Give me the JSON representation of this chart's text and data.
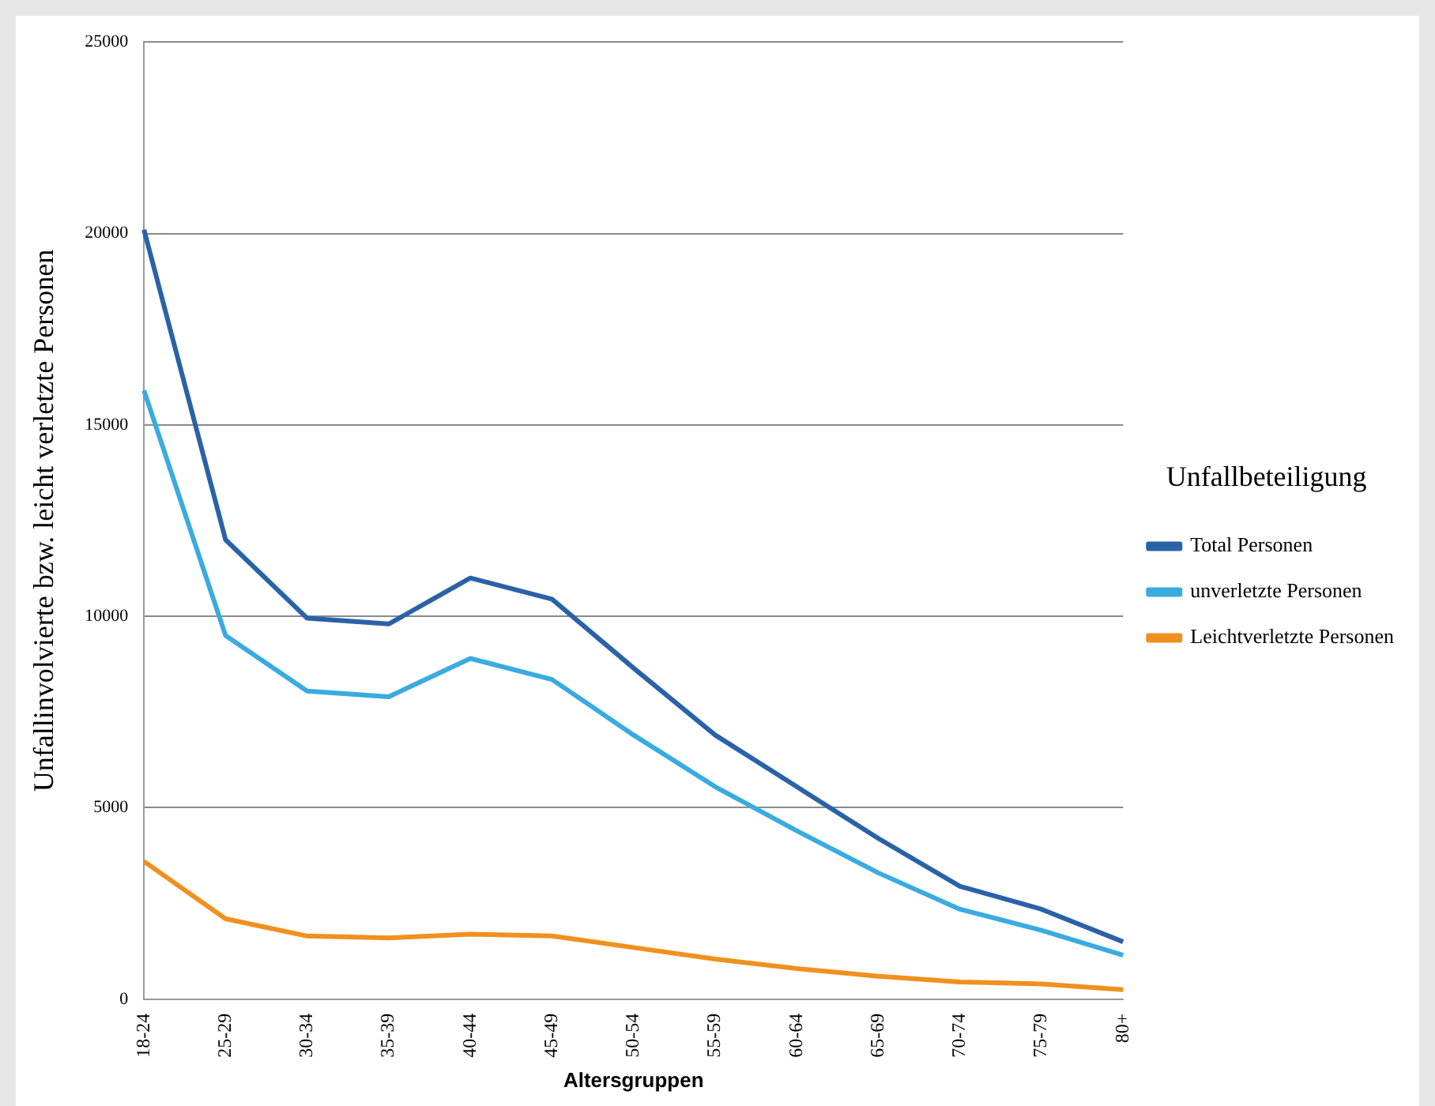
{
  "chart_data": {
    "type": "line",
    "xlabel": "Altersgruppen",
    "ylabel": "Unfallinvolvierte bzw. leicht verletzte Personen",
    "legend_title": "Unfallbeteiligung",
    "categories": [
      "18-24",
      "25-29",
      "30-34",
      "35-39",
      "40-44",
      "45-49",
      "50-54",
      "55-59",
      "60-64",
      "65-69",
      "70-74",
      "75-79",
      "80+"
    ],
    "series": [
      {
        "name": "Total Personen",
        "color": "#2a62a8",
        "values": [
          20100,
          12000,
          9950,
          9800,
          11000,
          10450,
          8650,
          6900,
          5550,
          4200,
          2950,
          2350,
          1500
        ]
      },
      {
        "name": "unverletzte Personen",
        "color": "#3aabe0",
        "values": [
          15900,
          9500,
          8050,
          7900,
          8900,
          8350,
          6900,
          5550,
          4400,
          3300,
          2350,
          1800,
          1150
        ]
      },
      {
        "name": "Leichtverletzte Personen",
        "color": "#f0901e",
        "values": [
          3600,
          2100,
          1650,
          1600,
          1700,
          1650,
          1350,
          1050,
          800,
          600,
          450,
          400,
          250
        ]
      }
    ],
    "ylim": [
      0,
      25000
    ],
    "yticks": [
      0,
      5000,
      10000,
      15000,
      20000,
      25000
    ],
    "grid": "y",
    "legend": "right",
    "marker": "none",
    "line_style": "solid"
  }
}
